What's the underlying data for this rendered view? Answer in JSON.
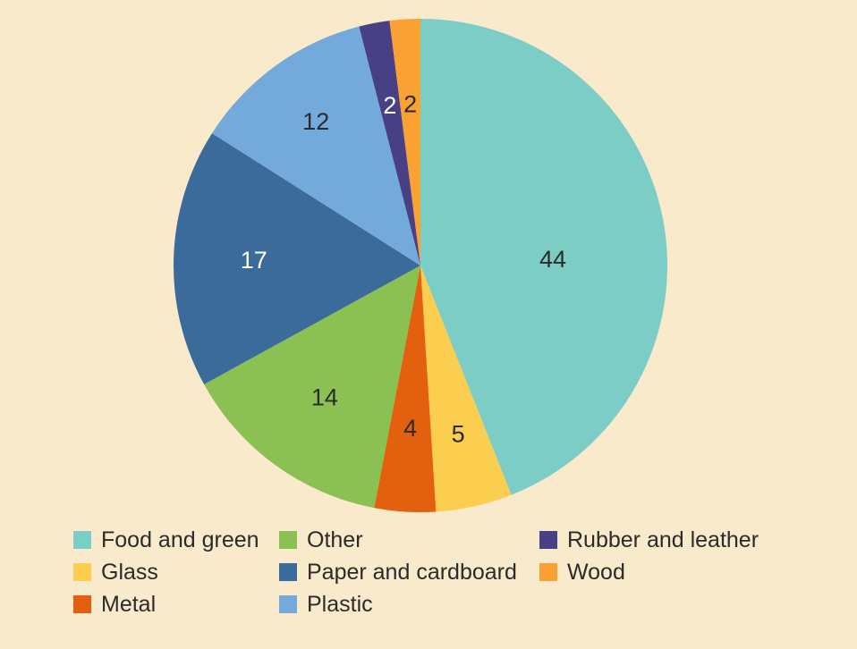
{
  "page": {
    "background_color": "#F8EACA",
    "text_color": "#2B2B2B"
  },
  "chart_data": {
    "type": "pie",
    "title": "",
    "unit": "percent",
    "start_angle_deg": 0,
    "direction": "clockwise",
    "total": 100,
    "legend": {
      "position": "bottom-left",
      "columns": 3,
      "flow": "column-major"
    },
    "slices": [
      {
        "label": "Food and green",
        "value": 44,
        "color": "#7CCDC6",
        "label_color": "#2B2B2B",
        "label_r": 0.537,
        "label_angle_deg": 87.3
      },
      {
        "label": "Glass",
        "value": 5,
        "color": "#FBCE50",
        "label_color": "#2B2B2B",
        "label_r": 0.7
      },
      {
        "label": "Metal",
        "value": 4,
        "color": "#E3600E",
        "label_color": "#2B2B2B",
        "label_r": 0.66
      },
      {
        "label": "Other",
        "value": 14,
        "color": "#8BC053",
        "label_color": "#2B2B2B",
        "label_r": 0.66
      },
      {
        "label": "Paper and cardboard",
        "value": 17,
        "color": "#3A6B9B",
        "label_color": "#FFFFFF",
        "label_r": 0.675
      },
      {
        "label": "Plastic",
        "value": 12,
        "color": "#74A9DC",
        "label_color": "#2B2B2B",
        "label_r": 0.72
      },
      {
        "label": "Rubber and leather",
        "value": 2,
        "color": "#474085",
        "label_color": "#FFFFFF",
        "label_r": 0.66
      },
      {
        "label": "Wood",
        "value": 2,
        "color": "#F9A233",
        "label_color": "#2B2B2B",
        "label_r": 0.655
      }
    ]
  }
}
